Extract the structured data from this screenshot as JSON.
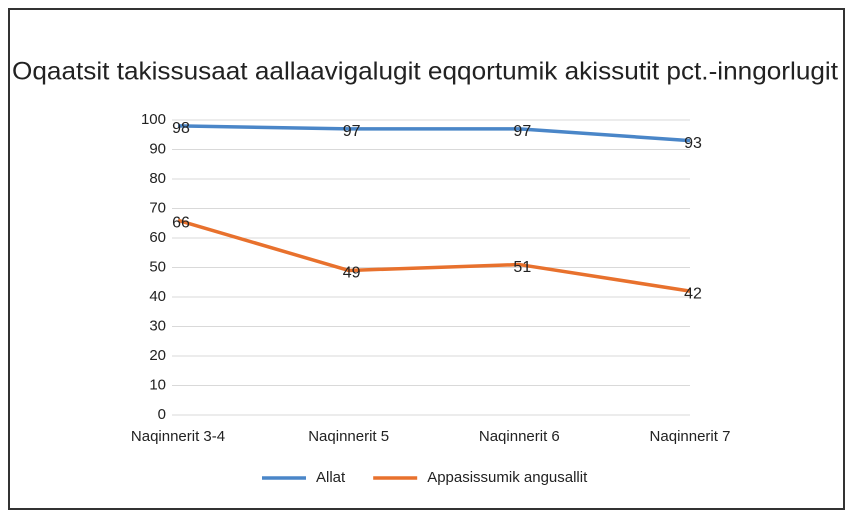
{
  "chart_data": {
    "type": "line",
    "title": "Oqaatsit takissusaat aallaavigalugit eqqortumik akissutit pct.-inngorlugit",
    "categories": [
      "Naqinnerit 3-4",
      "Naqinnerit 5",
      "Naqinnerit 6",
      "Naqinnerit 7"
    ],
    "series": [
      {
        "name": "Allat",
        "color": "#4a86c8",
        "values": [
          98,
          97,
          97,
          93
        ]
      },
      {
        "name": "Appasissumik angusallit",
        "color": "#e8712d",
        "values": [
          66,
          49,
          51,
          42
        ]
      }
    ],
    "ylim": [
      0,
      100
    ],
    "yticks": [
      0,
      10,
      20,
      30,
      40,
      50,
      60,
      70,
      80,
      90,
      100
    ],
    "grid": true,
    "legend": "bottom",
    "data_labels": true
  }
}
